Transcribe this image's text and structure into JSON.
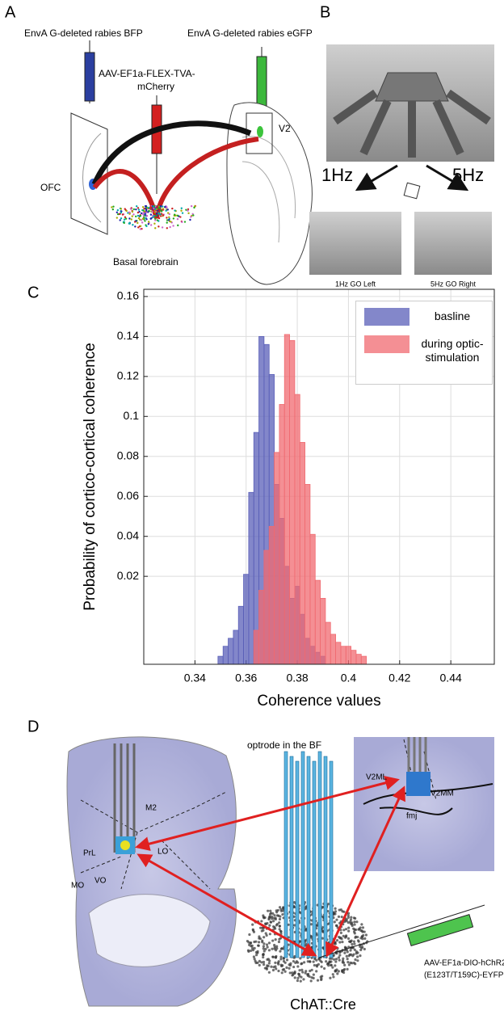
{
  "panels": {
    "a": {
      "label": "A",
      "bfp": "EnvA G-deleted rabies BFP",
      "tva": [
        "AAV-EF1a-FLEX-TVA-",
        "mCherry"
      ],
      "egfp": "EnvA G-deleted rabies eGFP",
      "v2": "V2",
      "ofc": "OFC",
      "bf": "Basal forebrain"
    },
    "b": {
      "label": "B",
      "left_rate": "1Hz",
      "right_rate": "5Hz",
      "left_caption": "1Hz GO Left",
      "right_caption": "5Hz GO Right"
    },
    "c": {
      "label": "C"
    },
    "d": {
      "label": "D",
      "optrode": "optrode in the BF",
      "regions": [
        "M2",
        "PrL",
        "LO",
        "MO",
        "VO",
        "V2ML",
        "V2MM",
        "fmj"
      ],
      "virus": [
        "AAV-EF1a-DIO-hChR2",
        "(E123T/T159C)-EYFP"
      ],
      "mouse": "ChAT::Cre"
    }
  },
  "chart_data": {
    "type": "histogram",
    "xlabel": "Coherence values",
    "ylabel": "Probability of cortico-cortical coherence",
    "xlim": [
      0.32,
      0.457
    ],
    "ylim": [
      -0.024,
      0.1636
    ],
    "xticks": [
      0.34,
      0.36,
      0.38,
      0.4,
      0.42,
      0.44
    ],
    "yticks": [
      0.02,
      0.04,
      0.06,
      0.08,
      0.1,
      0.12,
      0.14,
      0.16
    ],
    "grid": true,
    "series": [
      {
        "name": "basline",
        "color": "#5a5fb8",
        "bins": [
          0.349,
          0.351,
          0.353,
          0.355,
          0.357,
          0.359,
          0.361,
          0.363,
          0.365,
          0.367,
          0.369,
          0.371,
          0.373,
          0.375,
          0.377,
          0.379,
          0.381,
          0.383,
          0.385,
          0.387,
          0.389,
          0.391
        ],
        "values": [
          -0.02,
          -0.015,
          -0.011,
          -0.007,
          0.005,
          0.021,
          0.062,
          0.092,
          0.14,
          0.136,
          0.121,
          0.066,
          0.049,
          0.025,
          0.009,
          0.015,
          0.001,
          -0.011,
          -0.015,
          -0.018,
          -0.02
        ]
      },
      {
        "name": "during optic-stimulation",
        "color": "#f06a70",
        "bins": [
          0.363,
          0.365,
          0.367,
          0.369,
          0.371,
          0.373,
          0.375,
          0.377,
          0.379,
          0.381,
          0.383,
          0.385,
          0.387,
          0.389,
          0.391,
          0.393,
          0.395,
          0.397,
          0.399,
          0.401,
          0.403,
          0.405,
          0.407
        ],
        "values": [
          -0.007,
          0.013,
          0.033,
          0.045,
          0.082,
          0.106,
          0.141,
          0.138,
          0.111,
          0.087,
          0.066,
          0.041,
          0.018,
          0.009,
          -0.003,
          -0.009,
          -0.013,
          -0.015,
          -0.015,
          -0.017,
          -0.019,
          -0.02
        ]
      }
    ]
  }
}
